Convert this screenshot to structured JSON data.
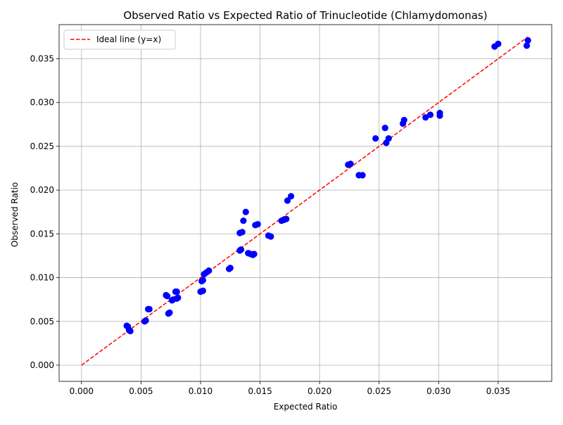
{
  "chart_data": {
    "type": "scatter",
    "title": "Observed Ratio vs Expected Ratio of Trinucleotide (Chlamydomonas)",
    "xlabel": "Expected Ratio",
    "ylabel": "Observed Ratio",
    "xlim": [
      -0.00188,
      0.0395
    ],
    "ylim": [
      -0.00185,
      0.0389
    ],
    "xticks": [
      "0.000",
      "0.005",
      "0.010",
      "0.015",
      "0.020",
      "0.025",
      "0.030",
      "0.035"
    ],
    "yticks": [
      "0.000",
      "0.005",
      "0.010",
      "0.015",
      "0.020",
      "0.025",
      "0.030",
      "0.035"
    ],
    "grid": true,
    "legend": {
      "placement": "upper-left",
      "entries": [
        "Ideal line (y=x)"
      ]
    },
    "ideal_line": {
      "from": [
        0.0,
        0.0
      ],
      "to": [
        0.0375,
        0.0375
      ],
      "color": "#ff0000",
      "style": "dashed"
    },
    "point_color": "#0000ff",
    "line_color": "#ff0000",
    "points": [
      [
        0.0038,
        0.0045
      ],
      [
        0.0039,
        0.0044
      ],
      [
        0.004,
        0.004
      ],
      [
        0.0041,
        0.0039
      ],
      [
        0.0053,
        0.005
      ],
      [
        0.0054,
        0.0051
      ],
      [
        0.0056,
        0.0064
      ],
      [
        0.0057,
        0.0064
      ],
      [
        0.0071,
        0.008
      ],
      [
        0.0072,
        0.0079
      ],
      [
        0.0073,
        0.0059
      ],
      [
        0.0074,
        0.006
      ],
      [
        0.0076,
        0.0074
      ],
      [
        0.0077,
        0.0075
      ],
      [
        0.0079,
        0.0084
      ],
      [
        0.008,
        0.0084
      ],
      [
        0.008,
        0.0076
      ],
      [
        0.0081,
        0.0077
      ],
      [
        0.01,
        0.0084
      ],
      [
        0.0102,
        0.0085
      ],
      [
        0.0101,
        0.0096
      ],
      [
        0.0102,
        0.0097
      ],
      [
        0.0103,
        0.0104
      ],
      [
        0.0105,
        0.0106
      ],
      [
        0.0107,
        0.0108
      ],
      [
        0.0124,
        0.011
      ],
      [
        0.0125,
        0.0111
      ],
      [
        0.0133,
        0.0131
      ],
      [
        0.0134,
        0.0132
      ],
      [
        0.0133,
        0.0151
      ],
      [
        0.0135,
        0.0152
      ],
      [
        0.0136,
        0.0165
      ],
      [
        0.0138,
        0.0175
      ],
      [
        0.014,
        0.0128
      ],
      [
        0.0142,
        0.0127
      ],
      [
        0.0144,
        0.0126
      ],
      [
        0.0145,
        0.0127
      ],
      [
        0.0146,
        0.016
      ],
      [
        0.0148,
        0.0161
      ],
      [
        0.0157,
        0.0148
      ],
      [
        0.0159,
        0.0147
      ],
      [
        0.0168,
        0.0165
      ],
      [
        0.017,
        0.0166
      ],
      [
        0.0172,
        0.0167
      ],
      [
        0.0173,
        0.0188
      ],
      [
        0.0176,
        0.0193
      ],
      [
        0.0224,
        0.0229
      ],
      [
        0.0226,
        0.023
      ],
      [
        0.0233,
        0.0217
      ],
      [
        0.0236,
        0.0217
      ],
      [
        0.0247,
        0.0259
      ],
      [
        0.0255,
        0.0271
      ],
      [
        0.0256,
        0.0254
      ],
      [
        0.0258,
        0.0259
      ],
      [
        0.027,
        0.0276
      ],
      [
        0.0271,
        0.028
      ],
      [
        0.0289,
        0.0283
      ],
      [
        0.0293,
        0.0286
      ],
      [
        0.0301,
        0.0285
      ],
      [
        0.0301,
        0.0288
      ],
      [
        0.0347,
        0.0364
      ],
      [
        0.035,
        0.0367
      ],
      [
        0.0374,
        0.0365
      ],
      [
        0.0375,
        0.0371
      ]
    ]
  }
}
